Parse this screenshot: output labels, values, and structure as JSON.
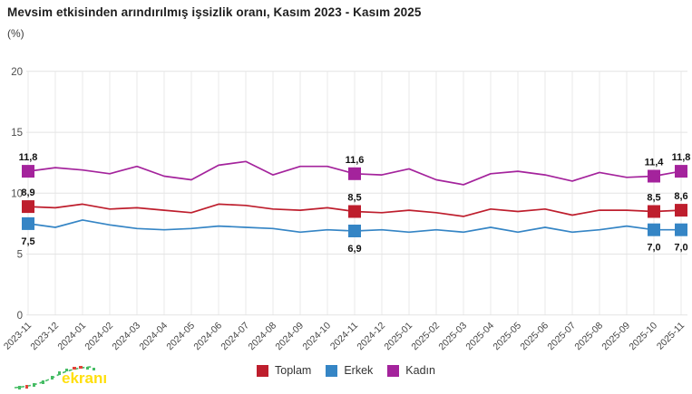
{
  "title": "Mevsim etkisinden arındırılmış işsizlik oranı, Kasım 2023 - Kasım 2025",
  "unit_label": "(%)",
  "watermark": {
    "text": "ekranı"
  },
  "legend": {
    "items": [
      {
        "label": "Toplam",
        "color": "#BE1E2D"
      },
      {
        "label": "Erkek",
        "color": "#3585C5"
      },
      {
        "label": "Kadın",
        "color": "#A4239C"
      }
    ]
  },
  "chart_data": {
    "type": "line",
    "title": "Mevsim etkisinden arındırılmış işsizlik oranı, Kasım 2023 - Kasım 2025",
    "ylabel": "(%)",
    "ylim": [
      0,
      20
    ],
    "yticks": [
      0,
      5,
      10,
      15,
      20
    ],
    "grid": true,
    "legend_position": "bottom",
    "x": [
      "2023-11",
      "2023-12",
      "2024-01",
      "2024-02",
      "2024-03",
      "2024-04",
      "2024-05",
      "2024-06",
      "2024-07",
      "2024-08",
      "2024-09",
      "2024-10",
      "2024-11",
      "2024-12",
      "2025-01",
      "2025-02",
      "2025-03",
      "2025-04",
      "2025-05",
      "2025-06",
      "2025-07",
      "2025-08",
      "2025-09",
      "2025-10",
      "2025-11"
    ],
    "series": [
      {
        "name": "Toplam",
        "color": "#BE1E2D",
        "values": [
          8.9,
          8.8,
          9.1,
          8.7,
          8.8,
          8.6,
          8.4,
          9.1,
          9.0,
          8.7,
          8.6,
          8.8,
          8.5,
          8.4,
          8.6,
          8.4,
          8.1,
          8.7,
          8.5,
          8.7,
          8.2,
          8.6,
          8.6,
          8.5,
          8.6
        ]
      },
      {
        "name": "Erkek",
        "color": "#3585C5",
        "values": [
          7.5,
          7.2,
          7.8,
          7.4,
          7.1,
          7.0,
          7.1,
          7.3,
          7.2,
          7.1,
          6.8,
          7.0,
          6.9,
          7.0,
          6.8,
          7.0,
          6.8,
          7.2,
          6.8,
          7.2,
          6.8,
          7.0,
          7.3,
          7.0,
          7.0
        ]
      },
      {
        "name": "Kadın",
        "color": "#A4239C",
        "values": [
          11.8,
          12.1,
          11.9,
          11.6,
          12.2,
          11.4,
          11.1,
          12.3,
          12.6,
          11.5,
          12.2,
          12.2,
          11.6,
          11.5,
          12.0,
          11.1,
          10.7,
          11.6,
          11.8,
          11.5,
          11.0,
          11.7,
          11.3,
          11.4,
          11.8
        ]
      }
    ],
    "annotations": [
      {
        "month": "2023-11",
        "series": "Kadın",
        "label": "11,8",
        "position": "above"
      },
      {
        "month": "2023-11",
        "series": "Toplam",
        "label": "8,9",
        "position": "above"
      },
      {
        "month": "2023-11",
        "series": "Erkek",
        "label": "7,5",
        "position": "below"
      },
      {
        "month": "2024-11",
        "series": "Kadın",
        "label": "11,6",
        "position": "above"
      },
      {
        "month": "2024-11",
        "series": "Toplam",
        "label": "8,5",
        "position": "above"
      },
      {
        "month": "2024-11",
        "series": "Erkek",
        "label": "6,9",
        "position": "below"
      },
      {
        "month": "2025-10",
        "series": "Kadın",
        "label": "11,4",
        "position": "above"
      },
      {
        "month": "2025-10",
        "series": "Toplam",
        "label": "8,5",
        "position": "above"
      },
      {
        "month": "2025-10",
        "series": "Erkek",
        "label": "7,0",
        "position": "below"
      },
      {
        "month": "2025-11",
        "series": "Kadın",
        "label": "11,8",
        "position": "above"
      },
      {
        "month": "2025-11",
        "series": "Toplam",
        "label": "8,6",
        "position": "above"
      },
      {
        "month": "2025-11",
        "series": "Erkek",
        "label": "7,0",
        "position": "below"
      }
    ]
  }
}
